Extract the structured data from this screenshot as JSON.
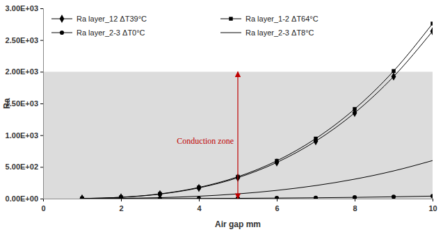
{
  "chart_data": {
    "type": "line",
    "x_label": "Air gap mm",
    "y_label": "Ra",
    "x": [
      1,
      2,
      3,
      4,
      5,
      6,
      7,
      8,
      9,
      10
    ],
    "xlim": [
      0,
      10
    ],
    "xticks": [
      0,
      2,
      4,
      6,
      8,
      10
    ],
    "ylim": [
      0,
      3000
    ],
    "yticks": [
      {
        "value": 0,
        "label": "0.00E+00"
      },
      {
        "value": 500,
        "label": "5.00E+02"
      },
      {
        "value": 1000,
        "label": "1.00E+03"
      },
      {
        "value": 1500,
        "label": "1.50E+03"
      },
      {
        "value": 2000,
        "label": "2.00E+03"
      },
      {
        "value": 2500,
        "label": "2.50E+03"
      },
      {
        "value": 3000,
        "label": "3.00E+03"
      }
    ],
    "grid": false,
    "legend": "top",
    "series": [
      {
        "name": "Ra layer_12 ΔT39°C",
        "color": "#000000",
        "marker": "diamond",
        "line_style": "solid",
        "values": [
          3,
          21,
          71,
          169,
          330,
          570,
          906,
          1352,
          1925,
          2640
        ]
      },
      {
        "name": "Ra layer_1-2 ΔT64°C",
        "color": "#000000",
        "marker": "square",
        "line_style": "solid",
        "values": [
          3,
          22,
          75,
          177,
          345,
          596,
          947,
          1413,
          2012,
          2760
        ]
      },
      {
        "name": "Ra layer_2-3 ΔT0°C",
        "color": "#000000",
        "marker": "circle",
        "line_style": "solid",
        "values": [
          0,
          0,
          1,
          3,
          5,
          9,
          14,
          20,
          29,
          40
        ]
      },
      {
        "name": "Ra layer_2-3 ΔT8°C",
        "color": "#000000",
        "marker": "none",
        "line_style": "solid",
        "values": [
          1,
          5,
          16,
          38,
          75,
          130,
          206,
          307,
          437,
          600
        ]
      }
    ],
    "annotations": [
      {
        "text": "Conduction zone",
        "x": 5,
        "y_range": [
          0,
          2000
        ],
        "color": "#c00000"
      }
    ]
  }
}
